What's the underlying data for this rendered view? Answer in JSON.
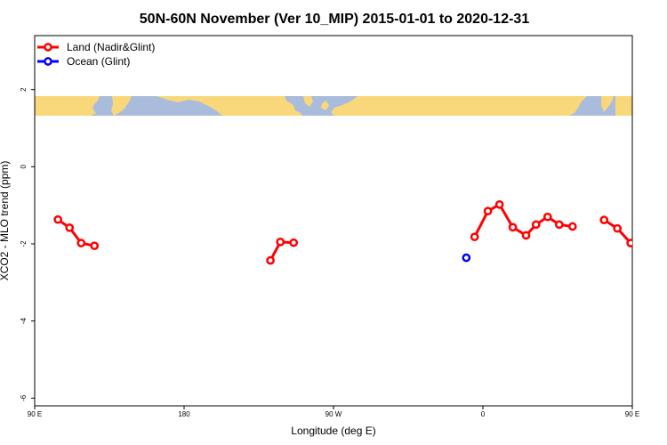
{
  "chart_data": {
    "type": "line",
    "title": "50N-60N November (Ver 10_MIP)   2015-01-01 to 2020-12-31",
    "xlabel": "Longitude (deg E)",
    "ylabel": "XCO2 - MLO trend (ppm)",
    "xlim": [
      90,
      450
    ],
    "ylim": [
      -6.2,
      3.4
    ],
    "x_ticks": [
      {
        "value": 90,
        "label": "90 E"
      },
      {
        "value": 180,
        "label": "180"
      },
      {
        "value": 270,
        "label": "90 W"
      },
      {
        "value": 360,
        "label": "0"
      },
      {
        "value": 450,
        "label": "90 E"
      },
      {
        "value": 540,
        "label": "180"
      }
    ],
    "y_ticks": [
      {
        "value": 2,
        "label": "2"
      },
      {
        "value": 0,
        "label": "0"
      },
      {
        "value": -2,
        "label": "-2"
      },
      {
        "value": -4,
        "label": "-4"
      },
      {
        "value": -6,
        "label": "-6"
      }
    ],
    "legend_position": "top-left",
    "map_band": {
      "y_range": [
        1.2,
        1.75
      ],
      "ocean_color": "#a9bcdc",
      "land_color": "#f9d77b"
    },
    "series": [
      {
        "name": "Land (Nadir&Glint)",
        "color": "#ff0000",
        "segments": [
          [
            [
              104,
              -1.37
            ],
            [
              111,
              -1.58
            ],
            [
              118,
              -1.98
            ],
            [
              126,
              -2.05
            ]
          ],
          [
            [
              232,
              -2.43
            ],
            [
              238,
              -1.95
            ],
            [
              246,
              -1.97
            ]
          ],
          [
            [
              355,
              -1.82
            ],
            [
              363,
              -1.15
            ],
            [
              370,
              -0.98
            ],
            [
              378,
              -1.57
            ],
            [
              386,
              -1.78
            ],
            [
              392,
              -1.5
            ],
            [
              399,
              -1.3
            ],
            [
              406,
              -1.5
            ],
            [
              414,
              -1.55
            ]
          ],
          [
            [
              433,
              -1.38
            ],
            [
              441,
              -1.6
            ],
            [
              449,
              -1.98
            ],
            [
              456,
              -2.05
            ]
          ]
        ]
      },
      {
        "name": "Ocean (Glint)",
        "color": "#0000ff",
        "segments": [
          [
            [
              350,
              -2.36
            ]
          ]
        ]
      }
    ]
  }
}
